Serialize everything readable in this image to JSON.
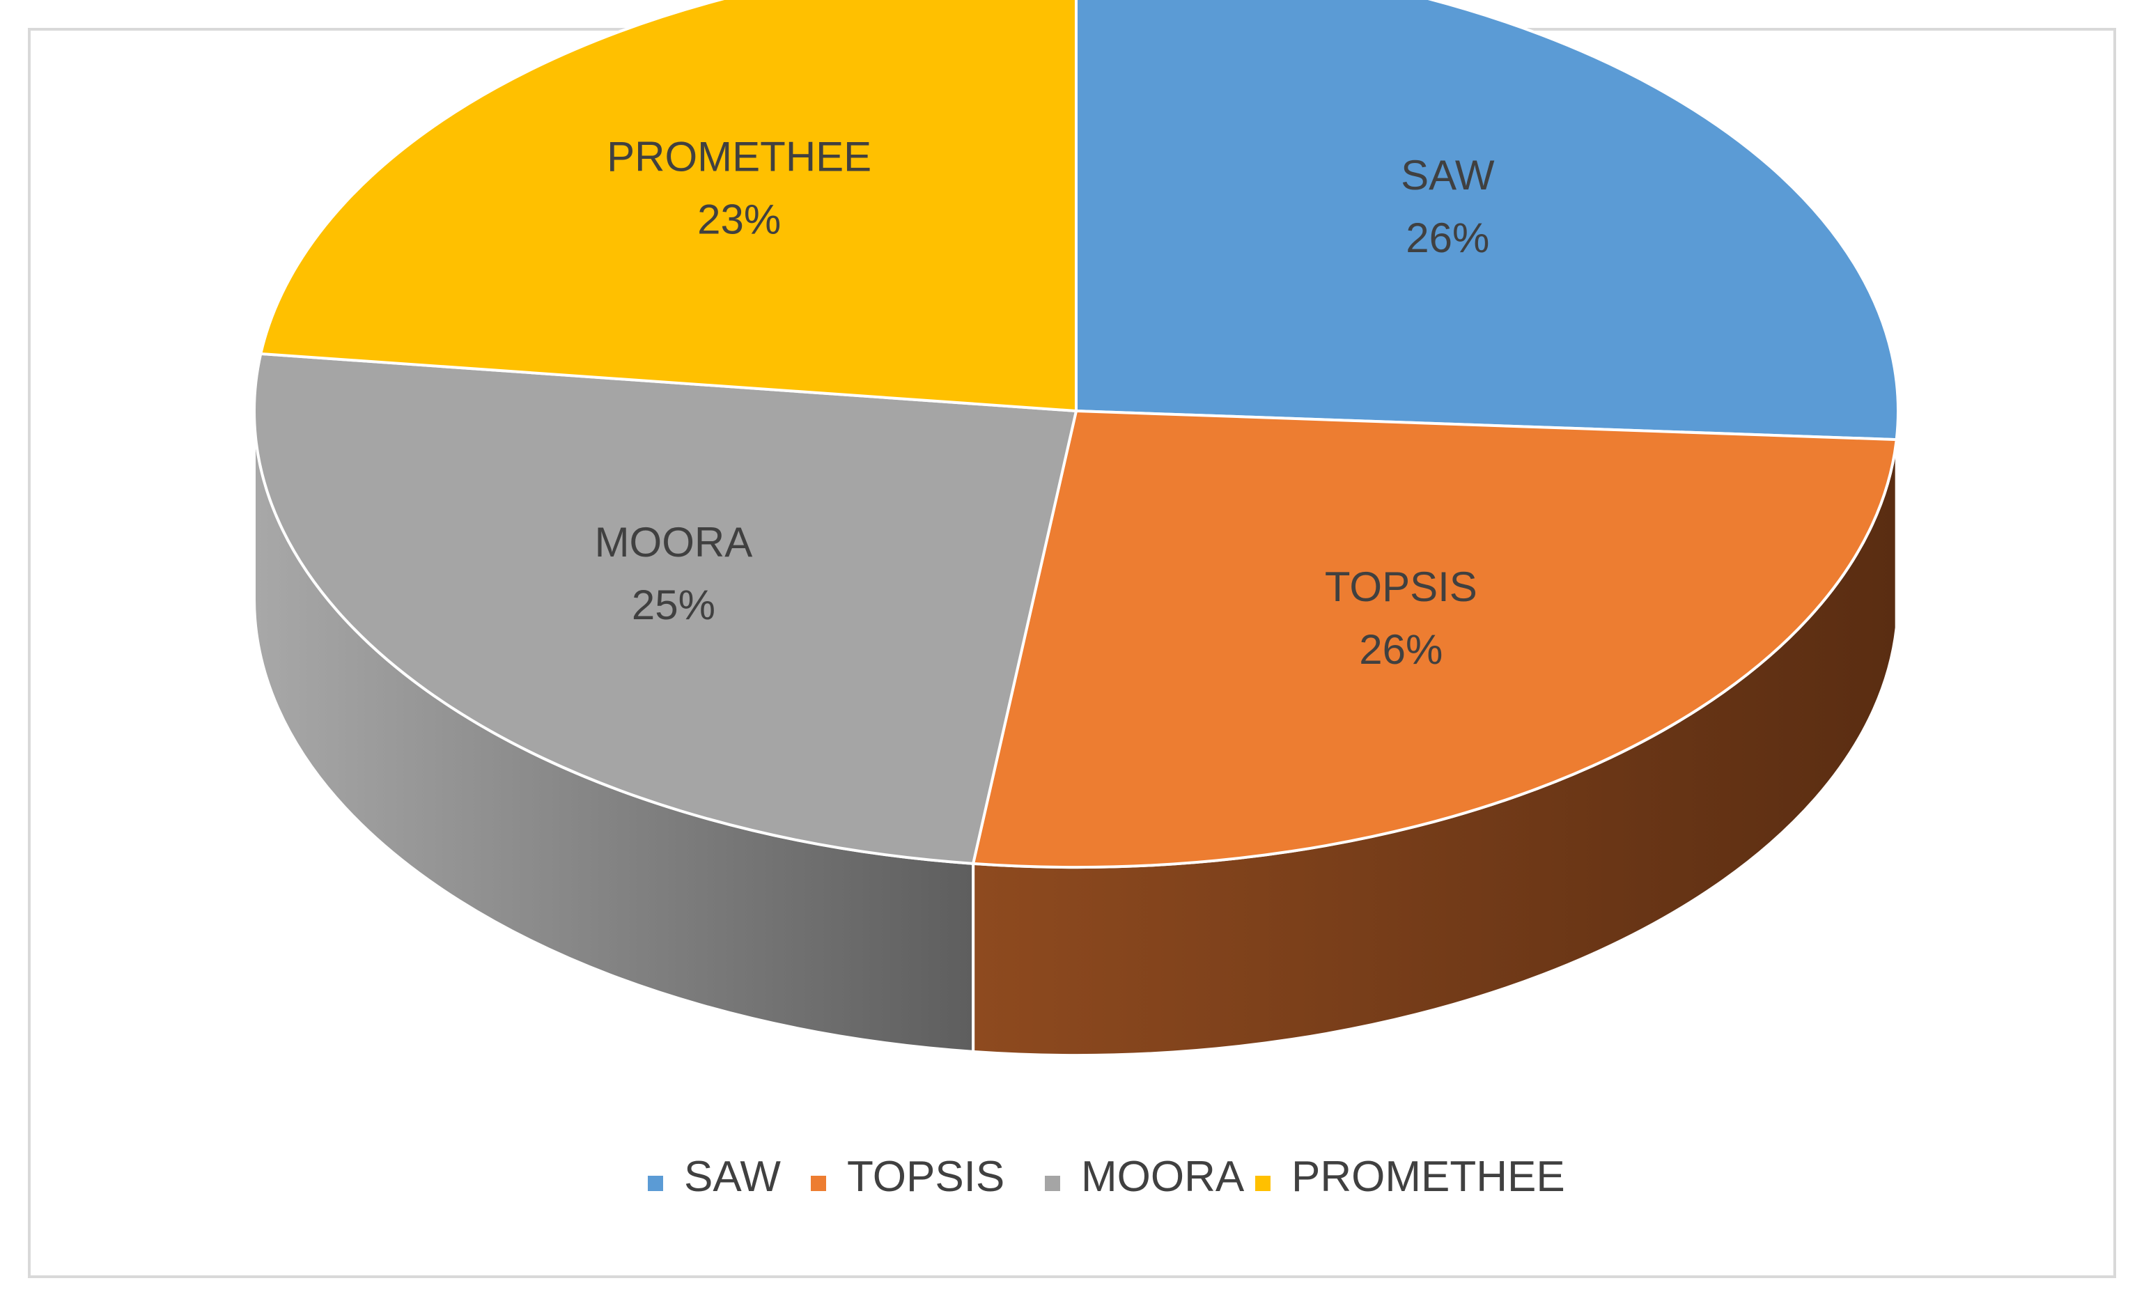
{
  "chart_data": {
    "type": "pie",
    "style": "3d",
    "categories": [
      "SAW",
      "TOPSIS",
      "MOORA",
      "PROMETHEE"
    ],
    "values": [
      26,
      26,
      25,
      23
    ],
    "value_labels": [
      "26%",
      "26%",
      "25%",
      "23%"
    ],
    "colors": [
      "#5b9bd5",
      "#ed7d31",
      "#a5a5a5",
      "#ffc000"
    ],
    "side_colors": [
      "#3c6e9e",
      "#5c3012",
      "#6b6b6b",
      "#a37b00"
    ],
    "legend_position": "bottom",
    "title": ""
  }
}
